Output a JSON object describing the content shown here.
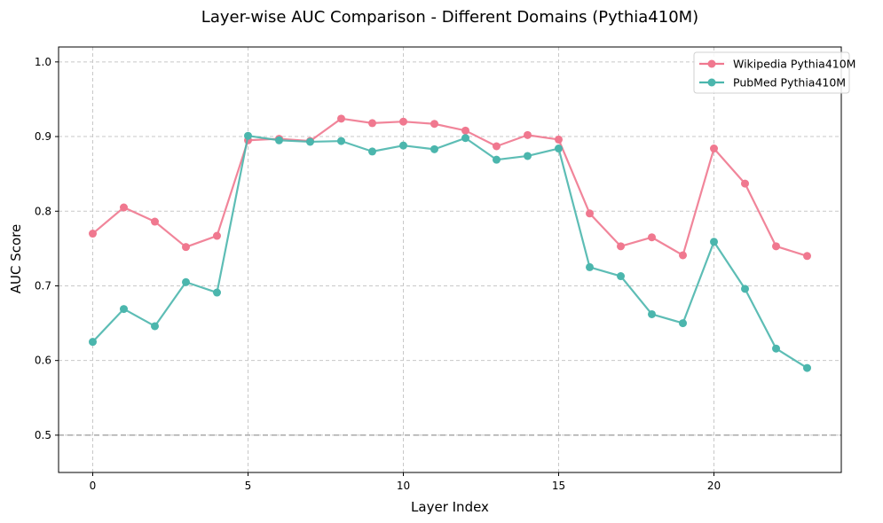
{
  "chart_data": {
    "type": "line",
    "title": "Layer-wise AUC Comparison - Different Domains (Pythia410M)",
    "xlabel": "Layer Index",
    "ylabel": "AUC Score",
    "xlim": [
      -1.1,
      24.1
    ],
    "ylim": [
      0.45,
      1.02
    ],
    "xticks": [
      0,
      5,
      10,
      15,
      20
    ],
    "yticks": [
      0.5,
      0.6,
      0.7,
      0.8,
      0.9,
      1.0
    ],
    "ytick_labels": [
      "0.5",
      "0.6",
      "0.7",
      "0.8",
      "0.9",
      "1.0"
    ],
    "grid": true,
    "legend_position": "top-right",
    "reference_line": {
      "y": 0.5,
      "color": "#aaaaaa"
    },
    "x": [
      0,
      1,
      2,
      3,
      4,
      5,
      6,
      7,
      8,
      9,
      10,
      11,
      12,
      13,
      14,
      15,
      16,
      17,
      18,
      19,
      20,
      21,
      22,
      23
    ],
    "series": [
      {
        "name": "Wikipedia Pythia410M",
        "color": "#f0788f",
        "values": [
          0.77,
          0.805,
          0.786,
          0.752,
          0.767,
          0.895,
          0.897,
          0.894,
          0.924,
          0.918,
          0.92,
          0.917,
          0.908,
          0.887,
          0.902,
          0.896,
          0.797,
          0.753,
          0.765,
          0.741,
          0.884,
          0.837,
          0.753,
          0.74
        ]
      },
      {
        "name": "PubMed Pythia410M",
        "color": "#4bb6ad",
        "values": [
          0.625,
          0.669,
          0.646,
          0.705,
          0.691,
          0.901,
          0.895,
          0.893,
          0.894,
          0.88,
          0.888,
          0.883,
          0.898,
          0.869,
          0.874,
          0.884,
          0.725,
          0.713,
          0.662,
          0.65,
          0.759,
          0.696,
          0.616,
          0.59
        ]
      }
    ]
  }
}
